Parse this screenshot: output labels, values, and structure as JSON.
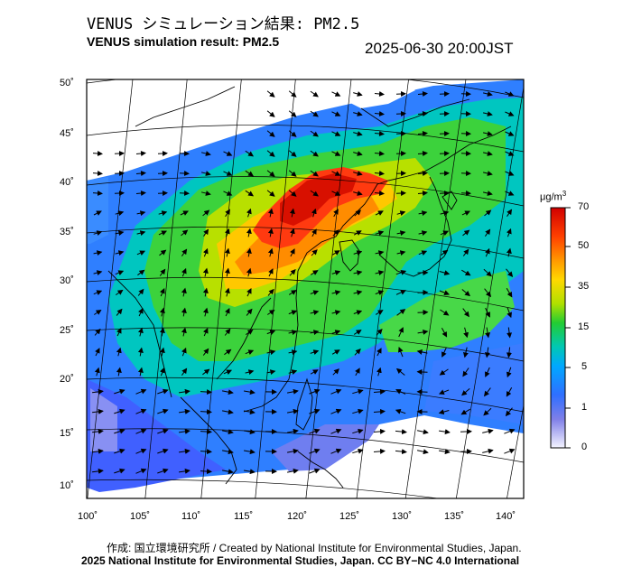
{
  "title_jp": "VENUS シミュレーション結果: PM2.5",
  "title_en": "VENUS simulation result: PM2.5",
  "timestamp": "2025-06-30 20:00JST",
  "map": {
    "lat_ticks": [
      "50˚",
      "45˚",
      "40˚",
      "35˚",
      "30˚",
      "25˚",
      "20˚",
      "15˚",
      "10˚"
    ],
    "lon_ticks": [
      "100˚",
      "105˚",
      "110˚",
      "115˚",
      "120˚",
      "125˚",
      "130˚",
      "135˚",
      "140˚"
    ]
  },
  "colorbar": {
    "unit_prefix": "μg/m",
    "unit_exp": "3",
    "labels": [
      "70",
      "50",
      "35",
      "15",
      "5",
      "1",
      "0"
    ],
    "colors": [
      "#d10000",
      "#ff3300",
      "#ff9900",
      "#ffe600",
      "#a0e000",
      "#22cc33",
      "#00c8b4",
      "#00a8ff",
      "#2f6fff",
      "#7f7fe8",
      "#ececff"
    ]
  },
  "credits": {
    "line1": "作成: 国立環境研究所 / Created by National Institute for Environmental Studies, Japan.",
    "line2": "2025 National Institute for Environmental Studies, Japan. CC BY−NC 4.0 International"
  }
}
